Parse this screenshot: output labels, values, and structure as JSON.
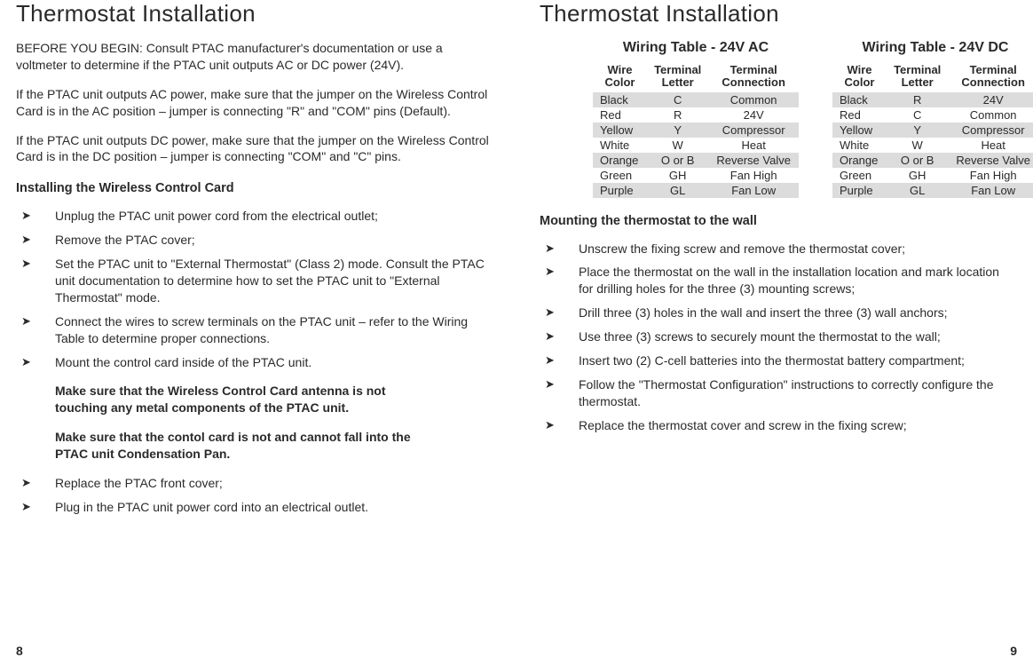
{
  "left": {
    "title": "Thermostat Installation",
    "paras": [
      "BEFORE YOU BEGIN: Consult PTAC manufacturer's documentation or use a voltmeter to determine if the PTAC unit outputs AC or DC power (24V).",
      "If the PTAC unit outputs AC power, make sure that the jumper on the Wireless Control Card is in the AC position – jumper is connecting \"R\" and \"COM\" pins (Default).",
      "If the PTAC unit outputs DC power, make sure that the jumper on the Wireless Control Card is in the DC position – jumper is connecting \"COM\" and \"C\" pins."
    ],
    "subhead": "Installing the Wireless Control Card",
    "steps_a": [
      "Unplug the PTAC unit power cord from the electrical outlet;",
      "Remove the PTAC cover;",
      "Set the PTAC unit to \"External Thermostat\" (Class 2) mode. Consult the PTAC unit documentation to determine how to set the PTAC unit to \"External Thermostat\" mode.",
      "Connect the wires to screw terminals on the PTAC unit – refer to the Wiring Table to determine proper connections.",
      "Mount the control card inside of the PTAC unit."
    ],
    "note1": "Make sure that the Wireless Control Card antenna is not touching any metal components of the PTAC unit.",
    "note2": "Make sure that the contol card is not and cannot fall into the PTAC unit Condensation Pan.",
    "steps_b": [
      "Replace the PTAC front cover;",
      "Plug in the PTAC unit power cord into an electrical outlet."
    ],
    "page_no": "8"
  },
  "right": {
    "title": "Thermostat Installation",
    "table_headers": [
      "Wire Color",
      "Terminal Letter",
      "Terminal Connection"
    ],
    "ac_table": {
      "title": "Wiring Table - 24V AC",
      "rows": [
        [
          "Black",
          "C",
          "Common"
        ],
        [
          "Red",
          "R",
          "24V"
        ],
        [
          "Yellow",
          "Y",
          "Compressor"
        ],
        [
          "White",
          "W",
          "Heat"
        ],
        [
          "Orange",
          "O or B",
          "Reverse Valve"
        ],
        [
          "Green",
          "GH",
          "Fan High"
        ],
        [
          "Purple",
          "GL",
          "Fan Low"
        ]
      ]
    },
    "dc_table": {
      "title": "Wiring Table - 24V DC",
      "rows": [
        [
          "Black",
          "R",
          "24V"
        ],
        [
          "Red",
          "C",
          "Common"
        ],
        [
          "Yellow",
          "Y",
          "Compressor"
        ],
        [
          "White",
          "W",
          "Heat"
        ],
        [
          "Orange",
          "O or B",
          "Reverse Valve"
        ],
        [
          "Green",
          "GH",
          "Fan High"
        ],
        [
          "Purple",
          "GL",
          "Fan Low"
        ]
      ]
    },
    "subhead": "Mounting the thermostat to the wall",
    "steps": [
      "Unscrew the fixing screw and remove the thermostat cover;",
      "Place the thermostat on the wall in the installation location and mark location for drilling holes for the three (3) mounting screws;",
      "Drill three (3) holes in the wall and insert the three (3) wall anchors;",
      "Use three (3) screws to securely mount the thermostat to the wall;",
      "Insert two (2) C-cell batteries into the thermostat battery compartment;",
      "Follow the \"Thermostat Configuration\" instructions to correctly configure the thermostat.",
      "Replace the thermostat cover and screw in the fixing screw;"
    ],
    "page_no": "9"
  },
  "style": {
    "shade_color": "#dcdcdc",
    "text_color": "#2a2a2a",
    "bg_color": "#ffffff"
  }
}
